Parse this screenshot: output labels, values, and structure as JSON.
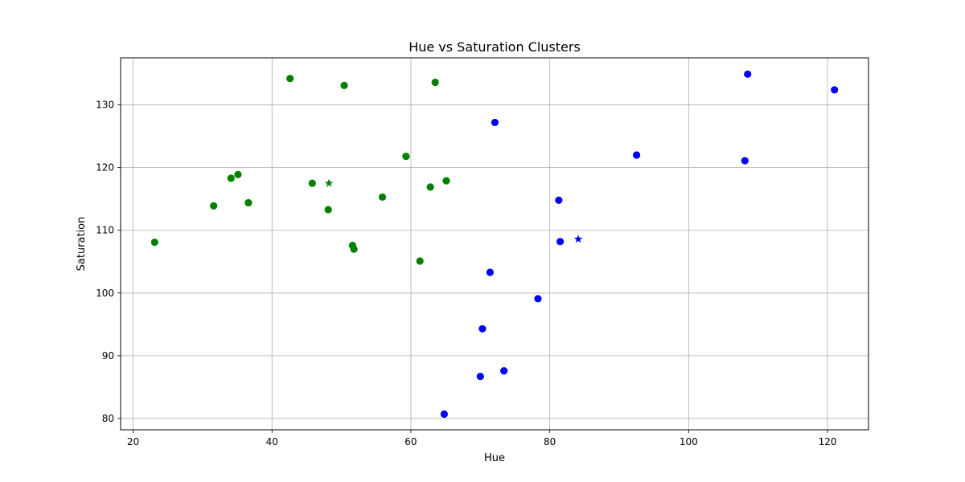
{
  "chart_data": {
    "type": "scatter",
    "title": "Hue vs Saturation Clusters",
    "xlabel": "Hue",
    "ylabel": "Saturation",
    "xlim": [
      18.2,
      125.9
    ],
    "ylim": [
      78.2,
      137.5
    ],
    "xticks": [
      20,
      40,
      60,
      80,
      100,
      120
    ],
    "yticks": [
      80,
      90,
      100,
      110,
      120,
      130
    ],
    "grid": true,
    "series": [
      {
        "color": "#008000",
        "marker": "circle",
        "points": [
          [
            23.1,
            108.1
          ],
          [
            31.6,
            113.9
          ],
          [
            34.1,
            118.3
          ],
          [
            35.1,
            118.9
          ],
          [
            36.6,
            114.4
          ],
          [
            42.6,
            134.2
          ],
          [
            45.8,
            117.5
          ],
          [
            48.1,
            113.3
          ],
          [
            50.4,
            133.1
          ],
          [
            51.6,
            107.6
          ],
          [
            51.8,
            107.0
          ],
          [
            55.9,
            115.3
          ],
          [
            59.3,
            121.8
          ],
          [
            61.3,
            105.1
          ],
          [
            62.8,
            116.9
          ],
          [
            63.5,
            133.6
          ],
          [
            65.1,
            117.9
          ]
        ]
      },
      {
        "color": "#0000ff",
        "marker": "circle",
        "points": [
          [
            64.8,
            80.7
          ],
          [
            70.0,
            86.7
          ],
          [
            70.3,
            94.3
          ],
          [
            71.4,
            103.3
          ],
          [
            72.1,
            127.2
          ],
          [
            73.4,
            87.6
          ],
          [
            78.3,
            99.1
          ],
          [
            81.3,
            114.8
          ],
          [
            81.5,
            108.2
          ],
          [
            92.5,
            122.0
          ],
          [
            108.1,
            121.1
          ],
          [
            108.5,
            134.9
          ],
          [
            121.0,
            132.4
          ]
        ]
      }
    ],
    "centroids": [
      {
        "color": "#008000",
        "marker": "star",
        "x": 48.2,
        "y": 117.5
      },
      {
        "color": "#0000ff",
        "marker": "star",
        "x": 84.1,
        "y": 108.6
      }
    ]
  }
}
